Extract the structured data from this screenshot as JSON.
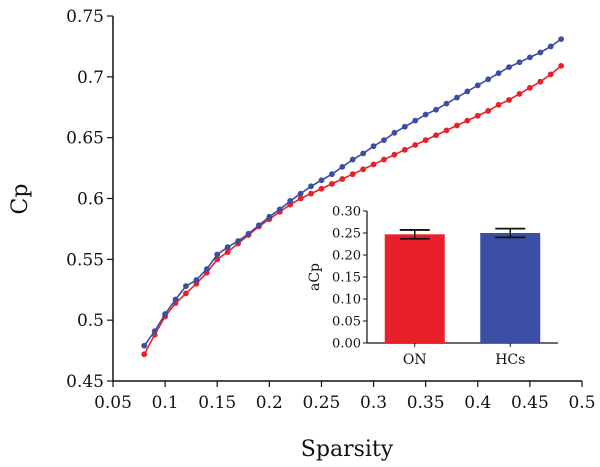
{
  "chart_data": [
    {
      "type": "line",
      "title": "",
      "xlabel": "Sparsity",
      "ylabel": "Cp",
      "xlim": [
        0.05,
        0.5
      ],
      "ylim": [
        0.45,
        0.75
      ],
      "xticks": [
        "0.05",
        "0.1",
        "0.15",
        "0.2",
        "0.25",
        "0.3",
        "0.35",
        "0.4",
        "0.45",
        "0.5"
      ],
      "yticks": [
        "0.45",
        "0.5",
        "0.55",
        "0.6",
        "0.65",
        "0.7",
        "0.75"
      ],
      "grid": false,
      "legend": "none",
      "x": [
        0.08,
        0.09,
        0.1,
        0.11,
        0.12,
        0.13,
        0.14,
        0.15,
        0.16,
        0.17,
        0.18,
        0.19,
        0.2,
        0.21,
        0.22,
        0.23,
        0.24,
        0.25,
        0.26,
        0.27,
        0.28,
        0.29,
        0.3,
        0.31,
        0.32,
        0.33,
        0.34,
        0.35,
        0.36,
        0.37,
        0.38,
        0.39,
        0.4,
        0.41,
        0.42,
        0.43,
        0.44,
        0.45,
        0.46,
        0.47,
        0.48
      ],
      "series": [
        {
          "color": "#e8202a",
          "values": [
            0.472,
            0.488,
            0.503,
            0.514,
            0.522,
            0.53,
            0.539,
            0.55,
            0.556,
            0.563,
            0.57,
            0.577,
            0.583,
            0.589,
            0.595,
            0.6,
            0.604,
            0.608,
            0.612,
            0.616,
            0.62,
            0.624,
            0.628,
            0.632,
            0.636,
            0.64,
            0.644,
            0.648,
            0.652,
            0.656,
            0.66,
            0.664,
            0.668,
            0.672,
            0.677,
            0.681,
            0.686,
            0.691,
            0.696,
            0.702,
            0.709
          ]
        },
        {
          "color": "#3b4ea3",
          "values": [
            0.479,
            0.491,
            0.505,
            0.517,
            0.528,
            0.533,
            0.542,
            0.554,
            0.56,
            0.565,
            0.571,
            0.578,
            0.585,
            0.591,
            0.598,
            0.604,
            0.61,
            0.615,
            0.62,
            0.626,
            0.632,
            0.637,
            0.643,
            0.648,
            0.654,
            0.659,
            0.664,
            0.669,
            0.673,
            0.678,
            0.683,
            0.688,
            0.693,
            0.698,
            0.703,
            0.708,
            0.712,
            0.716,
            0.72,
            0.725,
            0.731
          ]
        }
      ]
    },
    {
      "type": "bar",
      "title": "",
      "xlabel": "",
      "ylabel": "aCp",
      "ylim": [
        0,
        0.3
      ],
      "yticks": [
        "0.00",
        "0.05",
        "0.10",
        "0.15",
        "0.20",
        "0.25",
        "0.30"
      ],
      "categories": [
        "ON",
        "HCs"
      ],
      "values": [
        0.247,
        0.25
      ],
      "errors": [
        0.01,
        0.01
      ],
      "colors": [
        "#e8202a",
        "#3b4ea3"
      ]
    }
  ]
}
